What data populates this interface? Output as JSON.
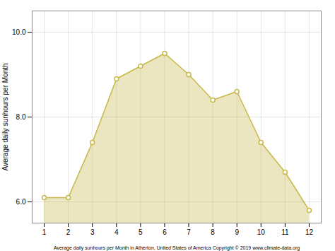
{
  "chart_data": {
    "type": "area",
    "x": [
      1,
      2,
      3,
      4,
      5,
      6,
      7,
      8,
      9,
      10,
      11,
      12
    ],
    "values": [
      6.1,
      6.1,
      7.4,
      8.9,
      9.2,
      9.5,
      9.0,
      8.4,
      8.6,
      7.4,
      6.7,
      5.8
    ],
    "color": "#c8b84a",
    "marker": "circle",
    "ylabel": "Average daily sunhours per Month",
    "xlabel": "Average daily sunhours per Month in Atherton, United States of America Copyright © 2019 www.climate-data.org",
    "xlim": [
      0.5,
      12.5
    ],
    "xticks": [
      1,
      2,
      3,
      4,
      5,
      6,
      7,
      8,
      9,
      10,
      11,
      12
    ],
    "ylim": [
      5.5,
      10.5
    ],
    "yticks": [
      6,
      8,
      10
    ],
    "grid": true
  }
}
